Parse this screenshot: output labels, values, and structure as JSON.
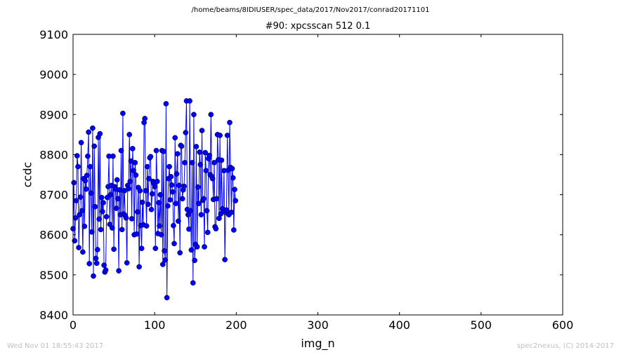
{
  "footer": {
    "timestamp": "Wed Nov 01 18:55:43 2017",
    "credit": "spec2nexus, (C) 2014-2017"
  },
  "chart_data": {
    "type": "line",
    "suptitle": "/home/beams/8IDIUSER/spec_data/2017/Nov2017/conrad20171101",
    "title": "#90: xpcsscan 512 0.1",
    "xlabel": "img_n",
    "ylabel": "ccdc",
    "xlim": [
      0,
      600
    ],
    "ylim": [
      8400,
      9100
    ],
    "xticks": [
      0,
      100,
      200,
      300,
      400,
      500,
      600
    ],
    "yticks": [
      8400,
      8500,
      8600,
      8700,
      8800,
      8900,
      9000,
      9100
    ],
    "grid": false,
    "marker": "circle",
    "color": "#0000ff",
    "series": [
      {
        "x_start": 0,
        "x_step": 1,
        "values": [
          8615,
          8730,
          8585,
          8642,
          8685,
          8797,
          8770,
          8568,
          8650,
          8694,
          8830,
          8660,
          8557,
          8740,
          8621,
          8735,
          8714,
          8748,
          8796,
          8856,
          8528,
          8770,
          8704,
          8607,
          8866,
          8497,
          8821,
          8670,
          8541,
          8529,
          8563,
          8843,
          8639,
          8852,
          8613,
          8693,
          8658,
          8680,
          8524,
          8507,
          8512,
          8645,
          8693,
          8720,
          8796,
          8626,
          8700,
          8723,
          8617,
          8796,
          8564,
          8720,
          8714,
          8666,
          8737,
          8690,
          8510,
          8712,
          8650,
          8810,
          8613,
          8903,
          8652,
          8710,
          8648,
          8642,
          8530,
          8723,
          8715,
          8850,
          8733,
          8784,
          8640,
          8815,
          8760,
          8600,
          8780,
          8749,
          8602,
          8657,
          8718,
          8520,
          8710,
          8623,
          8566,
          8681,
          8625,
          8880,
          8890,
          8710,
          8622,
          8770,
          8676,
          8740,
          8792,
          8795,
          8663,
          8702,
          8733,
          8728,
          8720,
          8566,
          8810,
          8733,
          8603,
          8680,
          8622,
          8700,
          8600,
          8810,
          8526,
          8808,
          8560,
          8537,
          8927,
          8443,
          8672,
          8740,
          8770,
          8687,
          8745,
          8724,
          8707,
          8623,
          8578,
          8842,
          8678,
          8752,
          8802,
          8634,
          8723,
          8555,
          8823,
          8821,
          8690,
          8712,
          8721,
          8780,
          8855,
          8934,
          8663,
          8650,
          8614,
          8934,
          8660,
          8562,
          8780,
          8480,
          8900,
          8536,
          8576,
          8820,
          8570,
          8719,
          8678,
          8806,
          8775,
          8650,
          8860,
          8686,
          8690,
          8570,
          8805,
          8760,
          8660,
          8606,
          8790,
          8798,
          8750,
          8900,
          8745,
          8740,
          8688,
          8780,
          8620,
          8615,
          8690,
          8850,
          8787,
          8641,
          8848,
          8652,
          8786,
          8665,
          8658,
          8760,
          8538,
          8656,
          8662,
          8848,
          8761,
          8650,
          8880,
          8768,
          8656,
          8765,
          8742,
          8612,
          8713,
          8685
        ]
      }
    ]
  }
}
